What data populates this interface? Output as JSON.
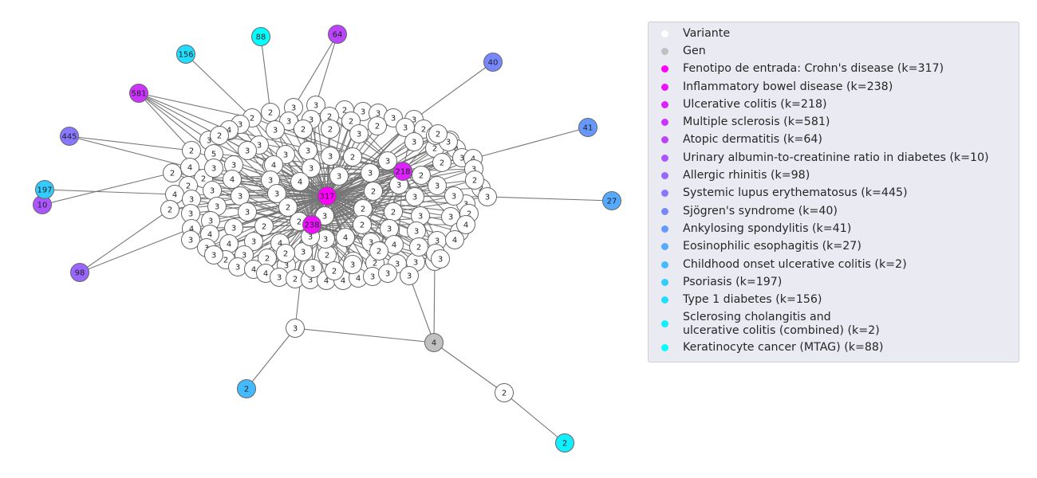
{
  "graph": {
    "hub_nodes": [
      {
        "id": "crohn",
        "label": "317",
        "color": "#ff00ff"
      },
      {
        "id": "ibd",
        "label": "238",
        "color": "#ee11ff"
      },
      {
        "id": "uc",
        "label": "218",
        "color": "#dd22ff"
      }
    ],
    "outer_nodes": [
      {
        "id": "ms",
        "label": "581",
        "color": "#cc33ff"
      },
      {
        "id": "ad",
        "label": "64",
        "color": "#bb44ff"
      },
      {
        "id": "uacr",
        "label": "10",
        "color": "#aa55ff"
      },
      {
        "id": "ar",
        "label": "98",
        "color": "#9966ff"
      },
      {
        "id": "sle",
        "label": "445",
        "color": "#8877ff"
      },
      {
        "id": "sj",
        "label": "40",
        "color": "#7788ff"
      },
      {
        "id": "as",
        "label": "41",
        "color": "#6699ff"
      },
      {
        "id": "eoe",
        "label": "27",
        "color": "#55aaff"
      },
      {
        "id": "couc",
        "label": "2",
        "color": "#44bbff"
      },
      {
        "id": "pso",
        "label": "197",
        "color": "#33ccff"
      },
      {
        "id": "t1d",
        "label": "156",
        "color": "#22ddff"
      },
      {
        "id": "psc",
        "label": "2",
        "color": "#11eeff"
      },
      {
        "id": "kc",
        "label": "88",
        "color": "#00ffff"
      }
    ],
    "gene_nodes": [
      {
        "id": "gene1",
        "label": "4",
        "color": "#c0c0c0"
      }
    ],
    "variant_labels": [
      "2",
      "3",
      "3",
      "2",
      "3",
      "3",
      "2",
      "3",
      "3",
      "2",
      "2",
      "3",
      "3",
      "2",
      "3",
      "3",
      "2",
      "2",
      "3",
      "2",
      "3",
      "4",
      "2",
      "3",
      "2",
      "3",
      "3",
      "3",
      "3",
      "2",
      "3",
      "3",
      "2",
      "3",
      "4",
      "2",
      "5",
      "4",
      "3",
      "3",
      "3",
      "3",
      "2",
      "3",
      "2",
      "3",
      "4",
      "4",
      "2",
      "3",
      "3",
      "4",
      "4",
      "3",
      "4",
      "2",
      "3",
      "2",
      "3",
      "2",
      "3",
      "2",
      "2",
      "2",
      "3",
      "3",
      "3",
      "2",
      "3",
      "3",
      "3",
      "4",
      "3",
      "3",
      "3",
      "3",
      "2",
      "2",
      "3",
      "2",
      "2",
      "2",
      "3",
      "3",
      "3",
      "2",
      "2",
      "2",
      "3",
      "3",
      "3",
      "4",
      "4",
      "4",
      "4",
      "3",
      "4",
      "3",
      "4",
      "3",
      "4",
      "3",
      "3",
      "4",
      "4",
      "3",
      "3",
      "2",
      "3",
      "2",
      "3",
      "2",
      "2",
      "2",
      "3",
      "3",
      "2",
      "3",
      "3",
      "3",
      "3",
      "4",
      "4",
      "3",
      "2",
      "3",
      "4",
      "4",
      "4",
      "3",
      "3",
      "3",
      "3",
      "2",
      "3",
      "3",
      "3",
      "2",
      "2",
      "2"
    ],
    "branch_variant_labels": [
      "3",
      "2"
    ]
  },
  "legend": {
    "items": [
      {
        "label": "Variante",
        "color": "#ffffff"
      },
      {
        "label": "Gen",
        "color": "#c0c0c0"
      },
      {
        "label": "Fenotipo de entrada: Crohn's disease (k=317)",
        "color": "#ff00ff"
      },
      {
        "label": "Inflammatory bowel disease (k=238)",
        "color": "#ee11ff"
      },
      {
        "label": "Ulcerative colitis (k=218)",
        "color": "#dd22ff"
      },
      {
        "label": "Multiple sclerosis (k=581)",
        "color": "#cc33ff"
      },
      {
        "label": "Atopic dermatitis (k=64)",
        "color": "#bb44ff"
      },
      {
        "label": "Urinary albumin-to-creatinine ratio in diabetes (k=10)",
        "color": "#aa55ff"
      },
      {
        "label": "Allergic rhinitis (k=98)",
        "color": "#9966ff"
      },
      {
        "label": "Systemic lupus erythematosus (k=445)",
        "color": "#8877ff"
      },
      {
        "label": "Sjögren's syndrome (k=40)",
        "color": "#7788ff"
      },
      {
        "label": "Ankylosing spondylitis (k=41)",
        "color": "#6699ff"
      },
      {
        "label": "Eosinophilic esophagitis (k=27)",
        "color": "#55aaff"
      },
      {
        "label": "Childhood onset ulcerative colitis (k=2)",
        "color": "#44bbff"
      },
      {
        "label": "Psoriasis (k=197)",
        "color": "#33ccff"
      },
      {
        "label": "Type 1 diabetes (k=156)",
        "color": "#22ddff"
      },
      {
        "label": "Sclerosing cholangitis and\nulcerative colitis (combined) (k=2)",
        "color": "#11eeff"
      },
      {
        "label": "Keratinocyte cancer (MTAG) (k=88)",
        "color": "#00ffff"
      }
    ]
  }
}
